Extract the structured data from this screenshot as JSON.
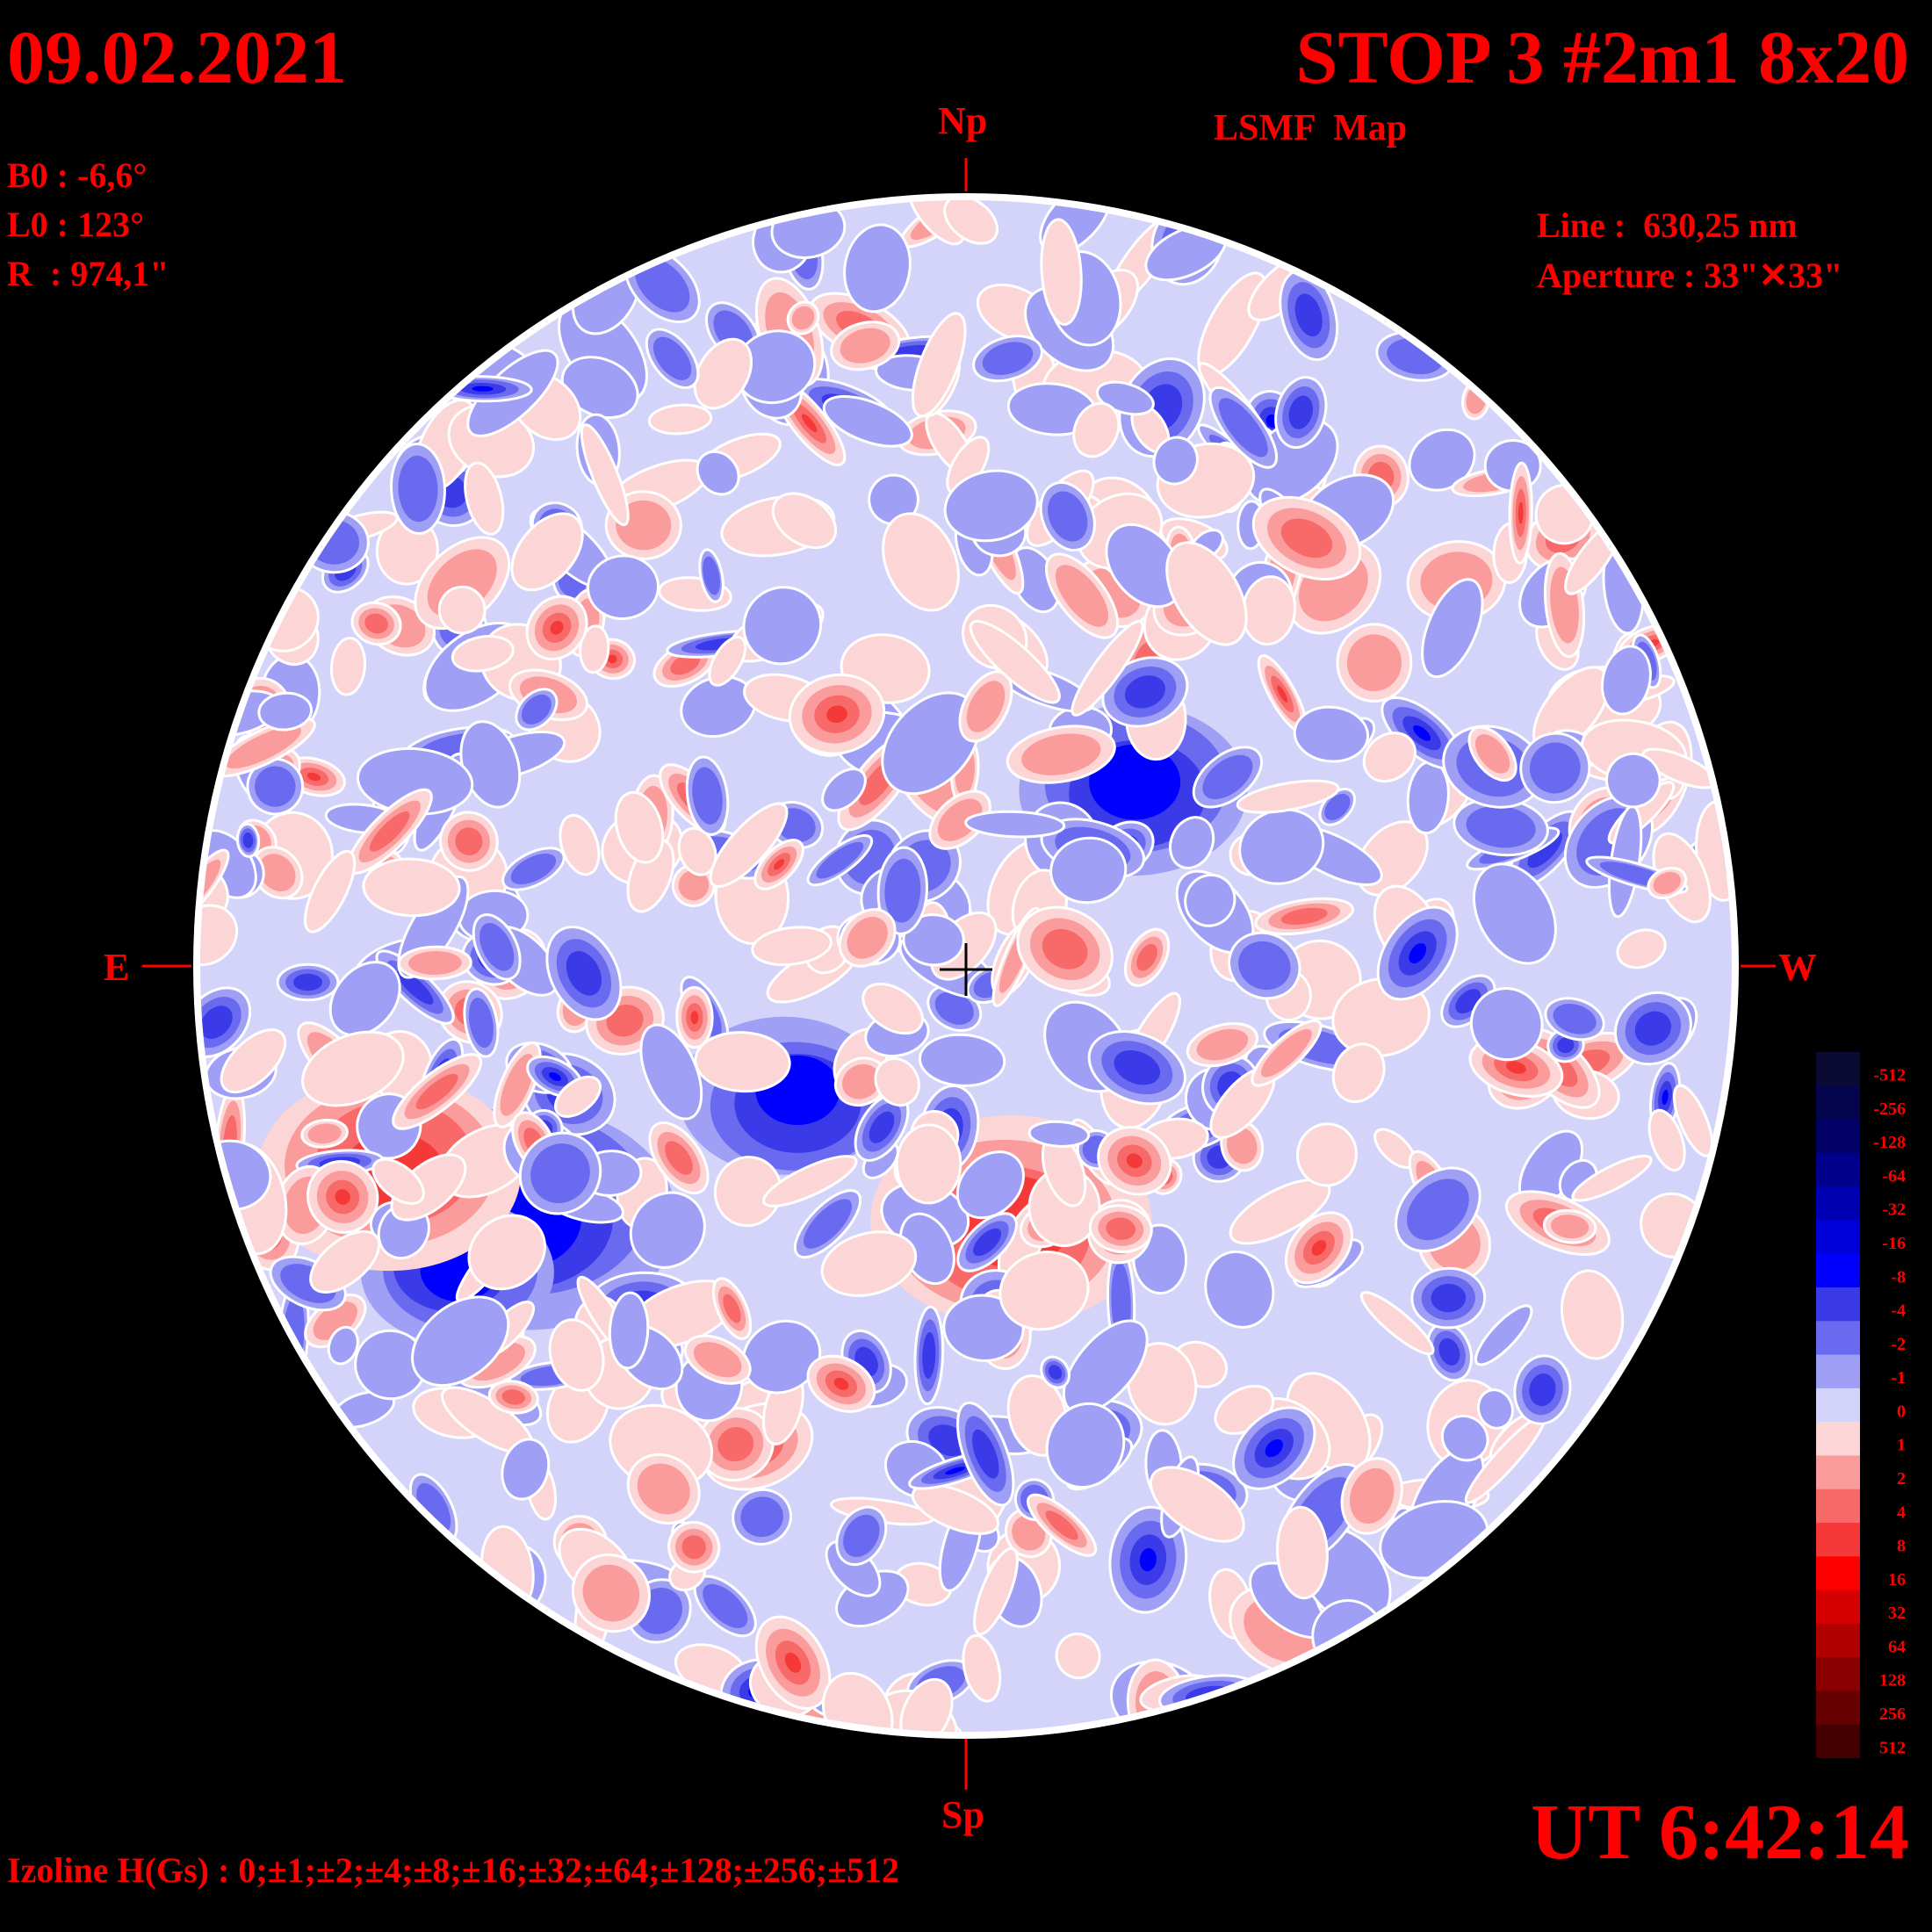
{
  "header": {
    "date": "09.02.2021",
    "title": "STOP 3 #2m1 8x20",
    "subtitle": "LSMF  Map"
  },
  "parameters": {
    "b0": "B0 : -6,6°",
    "l0": "L0 : 123°",
    "radius": "R  : 974,1\""
  },
  "instrument": {
    "line": "Line :  630,25 nm",
    "aperture": "Aperture : 33\"✕33\""
  },
  "directions": {
    "north": "Np",
    "south": "Sp",
    "east": "E",
    "west": "W"
  },
  "time": "UT 6:42:14",
  "izoline": "Izoline H(Gs) : 0;±1;±2;±4;±8;±16;±32;±64;±128;±256;±512",
  "legend": {
    "labels": [
      "-512",
      "-256",
      "-128",
      "-64",
      "-32",
      "-16",
      "-8",
      "-4",
      "-2",
      "-1",
      "0",
      "1",
      "2",
      "4",
      "8",
      "16",
      "32",
      "64",
      "128",
      "256",
      "512"
    ],
    "colors": [
      "#0a0a33",
      "#05054d",
      "#000066",
      "#00008c",
      "#0000b3",
      "#0000d9",
      "#0000ff",
      "#3a3ae8",
      "#6a6af0",
      "#9f9ff5",
      "#d4d4fb",
      "#fcd6d6",
      "#fb9c9c",
      "#f86a6a",
      "#f53838",
      "#ff0000",
      "#d60000",
      "#b00000",
      "#8a0000",
      "#660000",
      "#440000"
    ]
  },
  "colors": {
    "text": "#ff0000",
    "background": "#000000",
    "disk_rim": "#ffffff",
    "isoline_zero": "#ffffff"
  }
}
